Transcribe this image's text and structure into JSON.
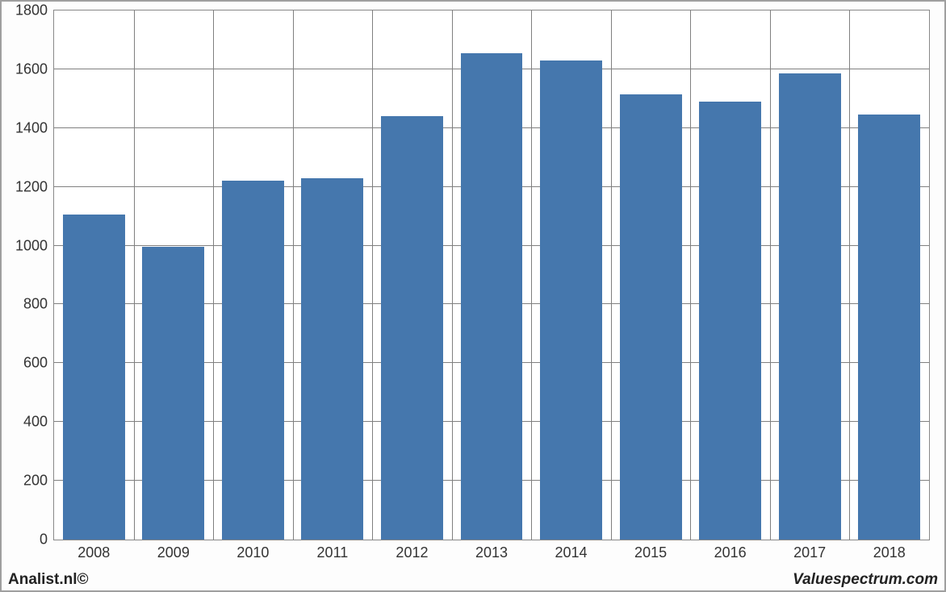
{
  "chart": {
    "type": "bar",
    "categories": [
      "2008",
      "2009",
      "2010",
      "2011",
      "2012",
      "2013",
      "2014",
      "2015",
      "2016",
      "2017",
      "2018"
    ],
    "values": [
      1105,
      995,
      1220,
      1230,
      1440,
      1655,
      1630,
      1515,
      1490,
      1585,
      1445
    ],
    "bar_color": "#4577ad",
    "background_color": "#ffffff",
    "grid_color": "#808080",
    "axis_color": "#808080",
    "ylim": [
      0,
      1800
    ],
    "ytick_step": 200,
    "yticks": [
      0,
      200,
      400,
      600,
      800,
      1000,
      1200,
      1400,
      1600,
      1800
    ],
    "tick_font_size": 18,
    "bar_width_ratio": 0.78,
    "text_color": "#333333"
  },
  "footer": {
    "left": "Analist.nl©",
    "right": "Valuespectrum.com",
    "font_size": 19
  }
}
